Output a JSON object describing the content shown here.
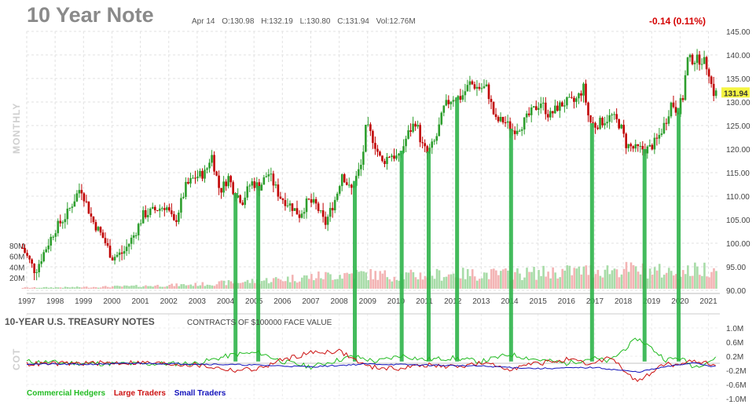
{
  "header": {
    "title": "10 Year Note",
    "date": "Apr 14",
    "open": "O:130.98",
    "high": "H:132.19",
    "low": "L:130.80",
    "close": "C:131.94",
    "volume": "Vol:12.76M",
    "change": "-0.14 (0.11%)"
  },
  "period_label": "MONTHLY",
  "cot_side_label": "COT",
  "cot_panel": {
    "title": "10-YEAR U.S. TREASURY NOTES",
    "subtitle": "CONTRACTS OF $100000 FACE VALUE"
  },
  "colors": {
    "up_candle": "#2d9e2d",
    "down_candle": "#c00000",
    "highlight_bar": "#2fb44a",
    "commercial": "#22bb22",
    "large": "#cc1111",
    "small": "#1111bb",
    "last_price_badge": "#f5f542"
  },
  "chart_data": [
    {
      "type": "candlestick",
      "title": "10 Year Note",
      "x_ticks": [
        "1997",
        "1998",
        "1999",
        "2000",
        "2001",
        "2002",
        "2003",
        "2004",
        "2005",
        "2006",
        "2007",
        "2008",
        "2009",
        "2010",
        "2011",
        "2012",
        "2013",
        "2014",
        "2015",
        "2016",
        "2017",
        "2018",
        "2019",
        "2020",
        "2021"
      ],
      "y_ticks": [
        "145.00",
        "140.00",
        "135.00",
        "130.00",
        "125.00",
        "120.00",
        "115.00",
        "110.00",
        "105.00",
        "100.00",
        "95.00",
        "90.00"
      ],
      "ylim": [
        90,
        145
      ],
      "xlim": [
        1997,
        2021.4
      ],
      "grid": true,
      "last_price": "131.94",
      "price_path": [
        [
          1996.85,
          99
        ],
        [
          1997.3,
          94
        ],
        [
          1997.6,
          98
        ],
        [
          1998.0,
          103
        ],
        [
          1998.4,
          106
        ],
        [
          1998.9,
          112
        ],
        [
          1999.3,
          105
        ],
        [
          1999.7,
          101
        ],
        [
          2000.0,
          97
        ],
        [
          2000.4,
          98
        ],
        [
          2000.8,
          102
        ],
        [
          2001.1,
          106
        ],
        [
          2001.5,
          107
        ],
        [
          2001.9,
          108
        ],
        [
          2002.2,
          104
        ],
        [
          2002.6,
          112
        ],
        [
          2002.9,
          114
        ],
        [
          2003.3,
          115
        ],
        [
          2003.5,
          119
        ],
        [
          2003.8,
          111
        ],
        [
          2004.1,
          114
        ],
        [
          2004.3,
          111
        ],
        [
          2004.6,
          109
        ],
        [
          2004.9,
          113
        ],
        [
          2005.2,
          112
        ],
        [
          2005.5,
          115
        ],
        [
          2005.9,
          110
        ],
        [
          2006.3,
          108
        ],
        [
          2006.6,
          106
        ],
        [
          2006.9,
          109
        ],
        [
          2007.2,
          108
        ],
        [
          2007.5,
          104
        ],
        [
          2007.9,
          110
        ],
        [
          2008.1,
          115
        ],
        [
          2008.4,
          111
        ],
        [
          2008.8,
          117
        ],
        [
          2008.95,
          125
        ],
        [
          2009.2,
          122
        ],
        [
          2009.5,
          117
        ],
        [
          2009.8,
          119
        ],
        [
          2010.1,
          118
        ],
        [
          2010.4,
          123
        ],
        [
          2010.7,
          126
        ],
        [
          2010.9,
          121
        ],
        [
          2011.1,
          119
        ],
        [
          2011.4,
          122
        ],
        [
          2011.7,
          129
        ],
        [
          2012.0,
          131
        ],
        [
          2012.3,
          131
        ],
        [
          2012.6,
          134
        ],
        [
          2012.9,
          133
        ],
        [
          2013.2,
          133
        ],
        [
          2013.5,
          126
        ],
        [
          2013.8,
          126
        ],
        [
          2014.1,
          124
        ],
        [
          2014.4,
          125
        ],
        [
          2014.8,
          128
        ],
        [
          2015.1,
          130
        ],
        [
          2015.4,
          127
        ],
        [
          2015.7,
          129
        ],
        [
          2016.0,
          130
        ],
        [
          2016.3,
          130
        ],
        [
          2016.6,
          133
        ],
        [
          2016.8,
          126
        ],
        [
          2017.0,
          125
        ],
        [
          2017.3,
          126
        ],
        [
          2017.6,
          127
        ],
        [
          2017.9,
          125
        ],
        [
          2018.1,
          121
        ],
        [
          2018.4,
          120
        ],
        [
          2018.7,
          120
        ],
        [
          2018.9,
          120
        ],
        [
          2019.2,
          122
        ],
        [
          2019.5,
          126
        ],
        [
          2019.7,
          130
        ],
        [
          2019.9,
          128
        ],
        [
          2020.1,
          131
        ],
        [
          2020.25,
          139
        ],
        [
          2020.5,
          139
        ],
        [
          2020.8,
          139
        ],
        [
          2021.0,
          137
        ],
        [
          2021.15,
          132
        ],
        [
          2021.28,
          131.94
        ]
      ],
      "volume": {
        "y_ticks": [
          "80M",
          "60M",
          "40M",
          "20M"
        ],
        "ylim": [
          0,
          90
        ],
        "samples": [
          [
            1997,
            2
          ],
          [
            1999,
            3
          ],
          [
            2001,
            5
          ],
          [
            2003,
            8
          ],
          [
            2005,
            14
          ],
          [
            2007,
            22
          ],
          [
            2008.5,
            28
          ],
          [
            2010,
            24
          ],
          [
            2012,
            27
          ],
          [
            2014,
            27
          ],
          [
            2016,
            32
          ],
          [
            2018,
            36
          ],
          [
            2020,
            30
          ],
          [
            2021.2,
            40
          ]
        ]
      },
      "highlights": [
        2004.35,
        2005.15,
        2008.55,
        2010.2,
        2011.15,
        2012.15,
        2014.05,
        2016.9,
        2018.75,
        2019.95
      ]
    },
    {
      "type": "line",
      "title": "10-YEAR U.S. TREASURY NOTES",
      "y_ticks": [
        "1.0M",
        "0.6M",
        "0.2M",
        "-0.2M",
        "-0.6M",
        "-1.0M"
      ],
      "ylim": [
        -1.0,
        1.0
      ],
      "series": [
        {
          "name": "Commercial Hedgers",
          "points": [
            [
              1997,
              0.05
            ],
            [
              1999,
              0.0
            ],
            [
              2001,
              -0.02
            ],
            [
              2003,
              0.0
            ],
            [
              2004.3,
              0.25
            ],
            [
              2005.2,
              0.3
            ],
            [
              2006,
              0.05
            ],
            [
              2007,
              -0.1
            ],
            [
              2008.5,
              0.2
            ],
            [
              2009.3,
              0.05
            ],
            [
              2010.2,
              0.22
            ],
            [
              2011,
              0.1
            ],
            [
              2012,
              0.15
            ],
            [
              2013,
              0.05
            ],
            [
              2014,
              0.25
            ],
            [
              2015,
              0.1
            ],
            [
              2016,
              0.0
            ],
            [
              2016.9,
              0.15
            ],
            [
              2017.5,
              0.05
            ],
            [
              2018.5,
              0.7
            ],
            [
              2018.8,
              0.55
            ],
            [
              2019.5,
              0.1
            ],
            [
              2020,
              0.15
            ],
            [
              2020.5,
              -0.1
            ],
            [
              2021.2,
              0.12
            ]
          ]
        },
        {
          "name": "Large Traders",
          "points": [
            [
              1997,
              -0.02
            ],
            [
              1999,
              0.0
            ],
            [
              2001,
              0.02
            ],
            [
              2003,
              -0.05
            ],
            [
              2004.3,
              -0.2
            ],
            [
              2005.2,
              -0.15
            ],
            [
              2006,
              0.1
            ],
            [
              2007,
              0.3
            ],
            [
              2008,
              0.35
            ],
            [
              2009,
              -0.1
            ],
            [
              2010,
              -0.15
            ],
            [
              2011,
              -0.05
            ],
            [
              2012,
              -0.1
            ],
            [
              2013,
              0.0
            ],
            [
              2014,
              -0.15
            ],
            [
              2015,
              0.0
            ],
            [
              2016,
              0.1
            ],
            [
              2016.9,
              -0.05
            ],
            [
              2017.5,
              0.2
            ],
            [
              2018.5,
              -0.55
            ],
            [
              2018.8,
              -0.35
            ],
            [
              2019.5,
              0.0
            ],
            [
              2020,
              -0.1
            ],
            [
              2020.5,
              0.1
            ],
            [
              2021.2,
              -0.05
            ]
          ]
        },
        {
          "name": "Small Traders",
          "points": [
            [
              1997,
              -0.02
            ],
            [
              1999,
              -0.03
            ],
            [
              2001,
              0.0
            ],
            [
              2003,
              -0.02
            ],
            [
              2005,
              -0.05
            ],
            [
              2007,
              -0.1
            ],
            [
              2009,
              -0.02
            ],
            [
              2011,
              -0.05
            ],
            [
              2013,
              -0.08
            ],
            [
              2015,
              -0.15
            ],
            [
              2017,
              -0.12
            ],
            [
              2018.5,
              -0.25
            ],
            [
              2019.5,
              -0.1
            ],
            [
              2020.5,
              0.02
            ],
            [
              2021.2,
              -0.1
            ]
          ]
        }
      ]
    }
  ]
}
